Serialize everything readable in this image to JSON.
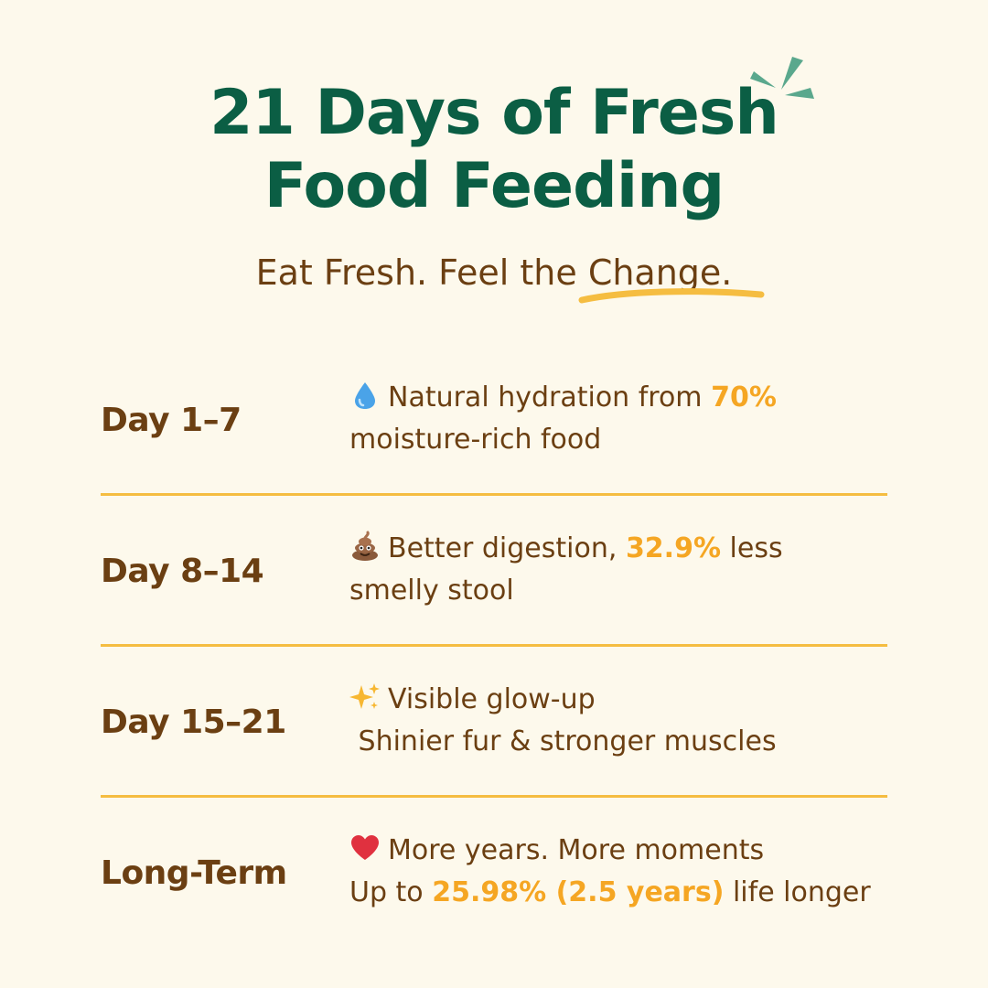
{
  "title": {
    "line1": "21 Days of Fresh",
    "line2": "Food Feeding"
  },
  "subtitle": {
    "lead": "Eat Fresh. Feel the ",
    "highlight": "Change."
  },
  "colors": {
    "background": "#fdf9ec",
    "title_green": "#0b5e44",
    "brown_text": "#6b3f12",
    "accent_yellow": "#f5a623",
    "divider": "#f5bd41",
    "sparkle": "#5aa88d"
  },
  "rows": [
    {
      "day": "Day 1–7",
      "icon": "water-drop-icon",
      "line1_pre": "Natural hydration from ",
      "line1_em": "70%",
      "line1_post": "",
      "line2_pre": "moisture-rich food",
      "line2_em": "",
      "line2_post": ""
    },
    {
      "day": "Day 8–14",
      "icon": "poop-icon",
      "line1_pre": "Better digestion, ",
      "line1_em": "32.9%",
      "line1_post": " less",
      "line2_pre": "smelly stool",
      "line2_em": "",
      "line2_post": ""
    },
    {
      "day": "Day 15–21",
      "icon": "sparkles-icon",
      "line1_pre": "Visible glow-up",
      "line1_em": "",
      "line1_post": "",
      "line2_pre": " Shinier fur & stronger muscles",
      "line2_em": "",
      "line2_post": ""
    },
    {
      "day": "Long-Term",
      "icon": "heart-icon",
      "line1_pre": "More years. More moments",
      "line1_em": "",
      "line1_post": "",
      "line2_pre": "Up to ",
      "line2_em": "25.98% (2.5 years)",
      "line2_post": " life longer"
    }
  ]
}
